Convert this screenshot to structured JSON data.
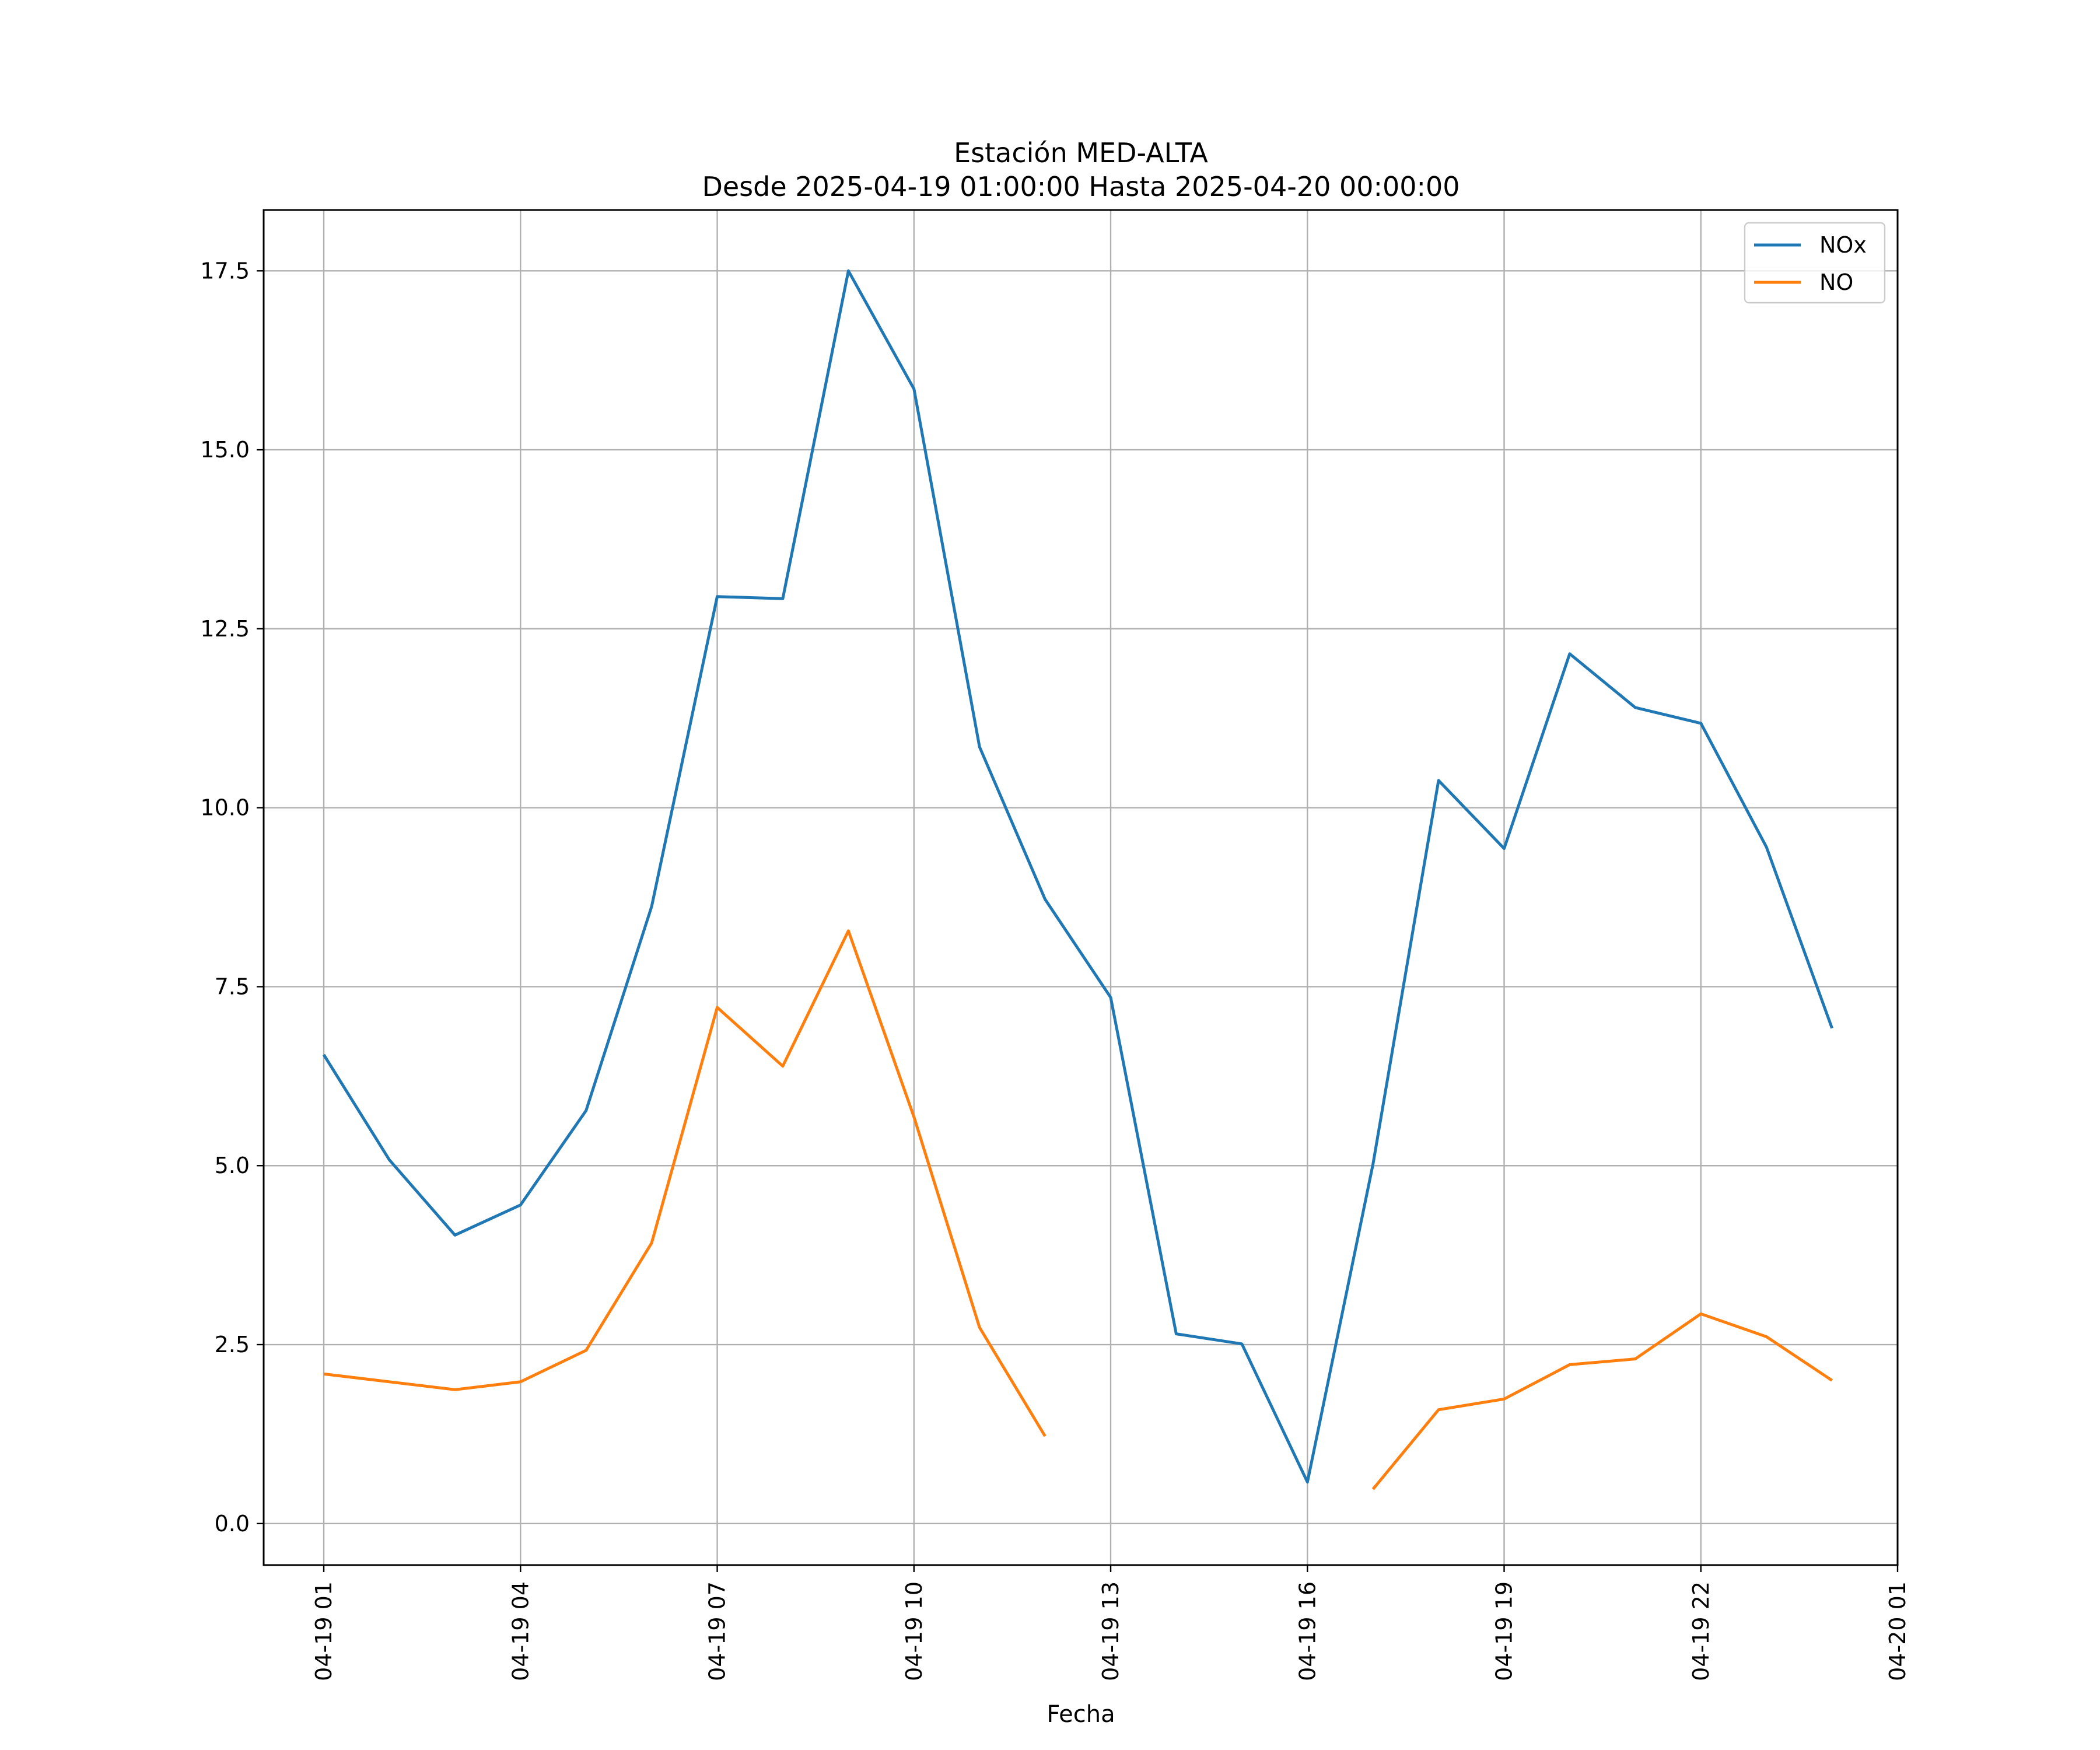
{
  "chart_data": {
    "type": "line",
    "title": "Estación MED-ALTA",
    "subtitle": "Desde 2025-04-19 01:00:00 Hasta 2025-04-20 00:00:00",
    "xlabel": "Fecha",
    "ylabel": "",
    "x": [
      "2025-04-19 01:00",
      "2025-04-19 02:00",
      "2025-04-19 03:00",
      "2025-04-19 04:00",
      "2025-04-19 05:00",
      "2025-04-19 06:00",
      "2025-04-19 07:00",
      "2025-04-19 08:00",
      "2025-04-19 09:00",
      "2025-04-19 10:00",
      "2025-04-19 11:00",
      "2025-04-19 12:00",
      "2025-04-19 13:00",
      "2025-04-19 14:00",
      "2025-04-19 15:00",
      "2025-04-19 16:00",
      "2025-04-19 17:00",
      "2025-04-19 18:00",
      "2025-04-19 19:00",
      "2025-04-19 20:00",
      "2025-04-19 21:00",
      "2025-04-19 22:00",
      "2025-04-19 23:00",
      "2025-04-20 00:00"
    ],
    "series": [
      {
        "name": "NOx",
        "color": "#1f77b4",
        "values": [
          6.55,
          5.08,
          4.03,
          4.45,
          5.77,
          8.62,
          12.95,
          12.92,
          17.5,
          15.85,
          10.85,
          8.72,
          7.35,
          2.65,
          2.51,
          0.58,
          5.02,
          10.38,
          9.43,
          12.15,
          11.4,
          11.18,
          9.45,
          6.92
        ]
      },
      {
        "name": "NO",
        "color": "#ff7f0e",
        "values": [
          2.09,
          1.98,
          1.87,
          1.98,
          2.42,
          3.92,
          7.21,
          6.39,
          8.28,
          5.68,
          2.74,
          1.22,
          null,
          null,
          null,
          null,
          0.48,
          1.59,
          1.74,
          2.22,
          2.3,
          2.93,
          2.61,
          2.0
        ]
      }
    ],
    "xticks": [
      {
        "value": "2025-04-19 01:00",
        "label": "04-19 01"
      },
      {
        "value": "2025-04-19 04:00",
        "label": "04-19 04"
      },
      {
        "value": "2025-04-19 07:00",
        "label": "04-19 07"
      },
      {
        "value": "2025-04-19 10:00",
        "label": "04-19 10"
      },
      {
        "value": "2025-04-19 13:00",
        "label": "04-19 13"
      },
      {
        "value": "2025-04-19 16:00",
        "label": "04-19 16"
      },
      {
        "value": "2025-04-19 19:00",
        "label": "04-19 19"
      },
      {
        "value": "2025-04-19 22:00",
        "label": "04-19 22"
      },
      {
        "value": "2025-04-20 01:00",
        "label": "04-20 01"
      }
    ],
    "yticks": [
      0.0,
      2.5,
      5.0,
      7.5,
      10.0,
      12.5,
      15.0,
      17.5
    ],
    "ytick_labels": [
      "0.0",
      "2.5",
      "5.0",
      "7.5",
      "10.0",
      "12.5",
      "15.0",
      "17.5"
    ],
    "xlim": [
      "2025-04-19 00:05",
      "2025-04-20 01:00"
    ],
    "ylim": [
      -0.58,
      18.35
    ],
    "grid": true,
    "legend_position": "top-right"
  }
}
